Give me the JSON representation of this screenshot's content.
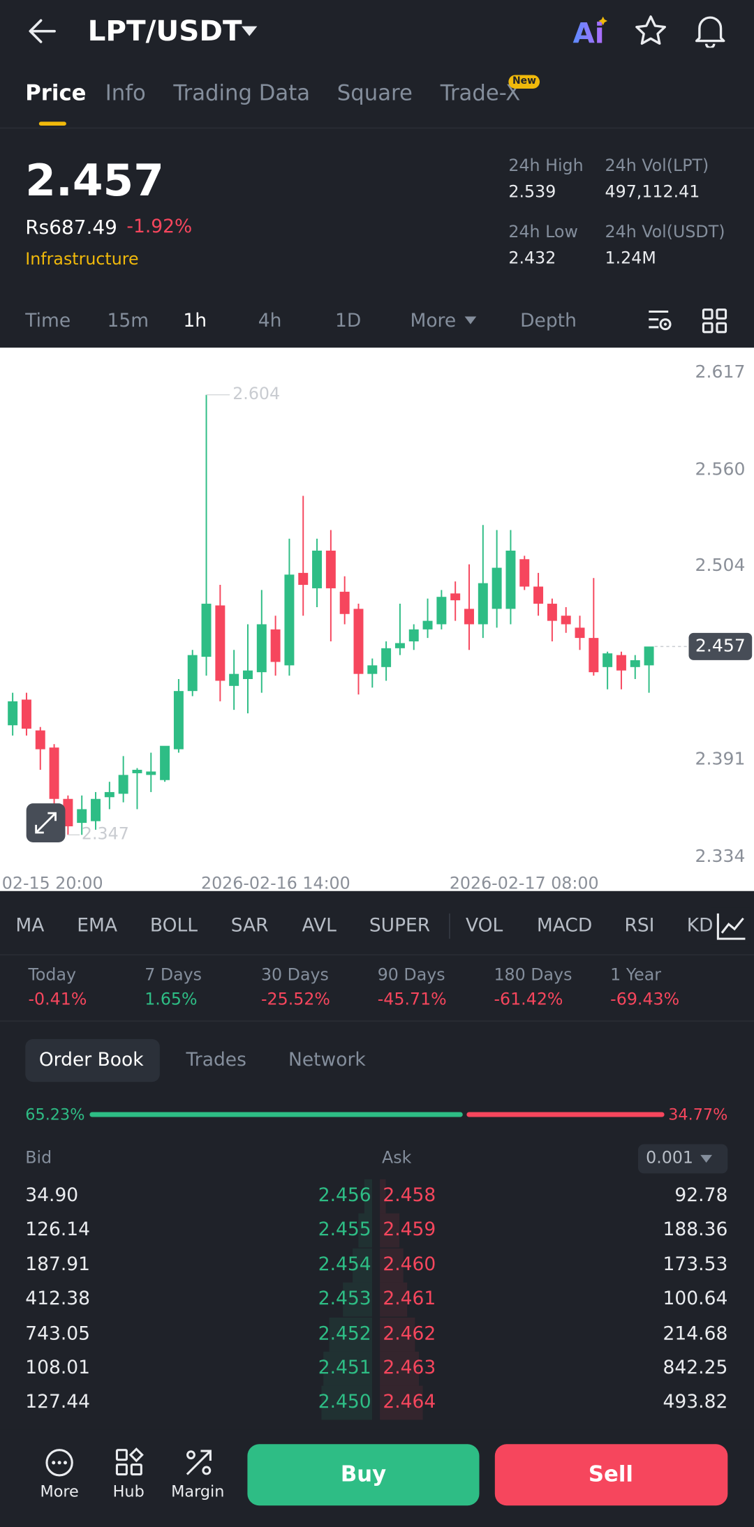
{
  "header": {
    "pair": "LPT/USDT"
  },
  "tabs": {
    "items": [
      "Price",
      "Info",
      "Trading Data",
      "Square",
      "Trade-X"
    ],
    "badge": "New"
  },
  "ticker": {
    "price": "2.457",
    "fiat": "Rs687.49",
    "change": "-1.92%",
    "tag": "Infrastructure",
    "stats": [
      {
        "label": "24h High",
        "value": "2.539"
      },
      {
        "label": "24h Vol(LPT)",
        "value": "497,112.41"
      },
      {
        "label": "24h Low",
        "value": "2.432"
      },
      {
        "label": "24h Vol(USDT)",
        "value": "1.24M"
      }
    ]
  },
  "intervals": [
    "Time",
    "15m",
    "1h",
    "4h",
    "1D",
    "More",
    "Depth"
  ],
  "chart_data": {
    "type": "candlestick",
    "open": [
      2.411,
      2.426,
      2.408,
      2.398,
      2.368,
      2.354,
      2.355,
      2.369,
      2.371,
      2.383,
      2.382,
      2.379,
      2.397,
      2.431,
      2.451,
      2.481,
      2.434,
      2.438,
      2.442,
      2.467,
      2.446,
      2.5,
      2.491,
      2.513,
      2.489,
      2.479,
      2.441,
      2.445,
      2.456,
      2.46,
      2.467,
      2.47,
      2.488,
      2.479,
      2.47,
      2.479,
      2.479,
      2.508,
      2.492,
      2.482,
      2.475,
      2.468,
      2.462,
      2.445,
      2.452,
      2.445,
      2.446
    ],
    "high": [
      2.43,
      2.43,
      2.41,
      2.4,
      2.37,
      2.37,
      2.372,
      2.378,
      2.393,
      2.386,
      2.395,
      2.397,
      2.438,
      2.455,
      2.604,
      2.493,
      2.455,
      2.47,
      2.49,
      2.475,
      2.52,
      2.545,
      2.52,
      2.525,
      2.498,
      2.482,
      2.45,
      2.46,
      2.482,
      2.47,
      2.485,
      2.49,
      2.495,
      2.505,
      2.528,
      2.525,
      2.525,
      2.51,
      2.5,
      2.485,
      2.48,
      2.475,
      2.497,
      2.454,
      2.454,
      2.452,
      2.455
    ],
    "low": [
      2.405,
      2.405,
      2.385,
      2.355,
      2.347,
      2.347,
      2.35,
      2.362,
      2.366,
      2.362,
      2.372,
      2.378,
      2.395,
      2.428,
      2.44,
      2.425,
      2.42,
      2.418,
      2.43,
      2.44,
      2.44,
      2.475,
      2.48,
      2.46,
      2.47,
      2.429,
      2.433,
      2.437,
      2.452,
      2.455,
      2.462,
      2.467,
      2.472,
      2.455,
      2.462,
      2.468,
      2.47,
      2.49,
      2.475,
      2.46,
      2.465,
      2.455,
      2.44,
      2.432,
      2.432,
      2.438,
      2.43
    ],
    "close": [
      2.425,
      2.409,
      2.397,
      2.368,
      2.352,
      2.362,
      2.368,
      2.372,
      2.382,
      2.385,
      2.384,
      2.399,
      2.431,
      2.452,
      2.482,
      2.437,
      2.441,
      2.443,
      2.47,
      2.448,
      2.499,
      2.493,
      2.513,
      2.491,
      2.476,
      2.441,
      2.446,
      2.456,
      2.459,
      2.467,
      2.472,
      2.486,
      2.484,
      2.47,
      2.494,
      2.503,
      2.513,
      2.492,
      2.482,
      2.472,
      2.47,
      2.462,
      2.442,
      2.453,
      2.443,
      2.449,
      2.457
    ],
    "up_color": "#2ebd85",
    "down_color": "#f6465d",
    "ylim": [
      2.325,
      2.627
    ],
    "yticks": [
      2.617,
      {
        "value": 2.56,
        "label": "2.560"
      },
      2.504,
      2.391,
      2.334
    ],
    "last_price": 2.457,
    "high_label": 2.604,
    "low_label": 2.347,
    "x_labels": [
      "02-15 20:00",
      "2026-02-16 14:00",
      "2026-02-17 08:00"
    ]
  },
  "indicators": [
    "MA",
    "EMA",
    "BOLL",
    "SAR",
    "AVL",
    "SUPER",
    "VOL",
    "MACD",
    "RSI",
    "KD"
  ],
  "performance": [
    {
      "period": "Today",
      "change": "-0.41%"
    },
    {
      "period": "7 Days",
      "change": "1.65%"
    },
    {
      "period": "30 Days",
      "change": "-25.52%"
    },
    {
      "period": "90 Days",
      "change": "-45.71%"
    },
    {
      "period": "180 Days",
      "change": "-61.42%"
    },
    {
      "period": "1 Year",
      "change": "-69.43%"
    }
  ],
  "book_tabs": [
    "Order Book",
    "Trades",
    "Network"
  ],
  "ratio": {
    "bid": "65.23%",
    "ask": "34.77%"
  },
  "book_header": {
    "bid": "Bid",
    "ask": "Ask",
    "precision": "0.001"
  },
  "book_rows": [
    [
      "34.90",
      "2.456",
      "2.458",
      "92.78"
    ],
    [
      "126.14",
      "2.455",
      "2.459",
      "188.36"
    ],
    [
      "187.91",
      "2.454",
      "2.460",
      "173.53"
    ],
    [
      "412.38",
      "2.453",
      "2.461",
      "100.64"
    ],
    [
      "743.05",
      "2.452",
      "2.462",
      "214.68"
    ],
    [
      "108.01",
      "2.451",
      "2.463",
      "842.25"
    ],
    [
      "127.44",
      "2.450",
      "2.464",
      "493.82"
    ]
  ],
  "bottom_bar": {
    "items": [
      "More",
      "Hub",
      "Margin"
    ],
    "buy": "Buy",
    "sell": "Sell"
  }
}
